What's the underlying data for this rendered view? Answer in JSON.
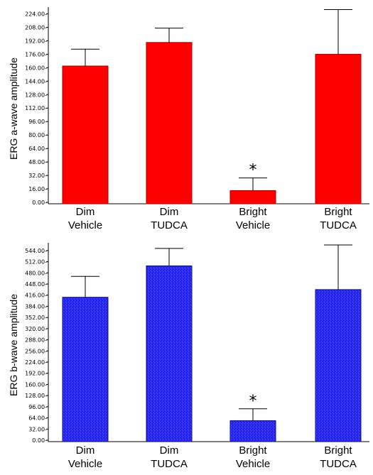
{
  "chart_data": [
    {
      "type": "bar",
      "ylabel": "ERG a-wave amplitude",
      "ylim": [
        0,
        232
      ],
      "yticks": [
        0,
        16,
        32,
        48,
        64,
        80,
        96,
        112,
        128,
        144,
        160,
        176,
        192,
        208,
        224
      ],
      "ytick_labels": [
        "0.00-",
        "16.00-",
        "32.00-",
        "48.00-",
        "64.00-",
        "80.00-",
        "96.00-",
        "112.00-",
        "128.00-",
        "144.00-",
        "160.00-",
        "176.00-",
        "192.00-",
        "208.00-",
        "224.00-"
      ],
      "categories": [
        [
          "Dim",
          "Vehicle"
        ],
        [
          "Dim",
          "TUDCA"
        ],
        [
          "Bright",
          "Vehicle"
        ],
        [
          "Bright",
          "TUDCA"
        ]
      ],
      "values": [
        162,
        190,
        14,
        176
      ],
      "error_upper": [
        182,
        207,
        29,
        229
      ],
      "annotations": [
        {
          "category_index": 2,
          "text": "*"
        }
      ],
      "bar_color": "#ff0000",
      "grid": false
    },
    {
      "type": "bar",
      "ylabel": "ERG b-wave amplitude",
      "ylim": [
        0,
        560
      ],
      "yticks": [
        0,
        32,
        64,
        96,
        128,
        160,
        192,
        224,
        256,
        288,
        320,
        352,
        384,
        416,
        448,
        480,
        512,
        544
      ],
      "ytick_labels": [
        "0.00-",
        "32.00-",
        "64.00-",
        "96.00-",
        "128.00-",
        "160.00-",
        "192.00-",
        "224.00-",
        "256.00-",
        "288.00-",
        "320.00-",
        "352.00-",
        "384.00-",
        "416.00-",
        "448.00-",
        "480.00-",
        "512.00-",
        "544.00-"
      ],
      "categories": [
        [
          "Dim",
          "Vehicle"
        ],
        [
          "Dim",
          "TUDCA"
        ],
        [
          "Bright",
          "Vehicle"
        ],
        [
          "Bright",
          "TUDCA"
        ]
      ],
      "values": [
        410,
        500,
        56,
        432
      ],
      "error_upper": [
        470,
        550,
        90,
        560
      ],
      "annotations": [
        {
          "category_index": 2,
          "text": "*"
        }
      ],
      "bar_color": "#2a2af0",
      "grid": false
    }
  ]
}
